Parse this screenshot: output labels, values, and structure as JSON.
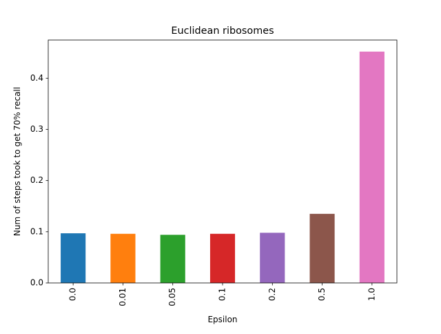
{
  "chart_data": {
    "type": "bar",
    "title": "Euclidean ribosomes",
    "xlabel": "Epsilon",
    "ylabel": "Num of steps took to get 70% recall",
    "categories": [
      "0.0",
      "0.01",
      "0.05",
      "0.1",
      "0.2",
      "0.5",
      "1.0"
    ],
    "values": [
      0.097,
      0.096,
      0.094,
      0.096,
      0.098,
      0.135,
      0.452
    ],
    "colors": [
      "#1f77b4",
      "#ff7f0e",
      "#2ca02c",
      "#d62728",
      "#9467bd",
      "#8c564b",
      "#e377c2"
    ],
    "ylim": [
      0,
      0.4746
    ],
    "yticks": [
      0.0,
      0.1,
      0.2,
      0.3,
      0.4
    ],
    "ytick_labels": [
      "0.0",
      "0.1",
      "0.2",
      "0.3",
      "0.4"
    ],
    "grid": false,
    "legend": "none",
    "xtick_rotation": "vertical"
  }
}
